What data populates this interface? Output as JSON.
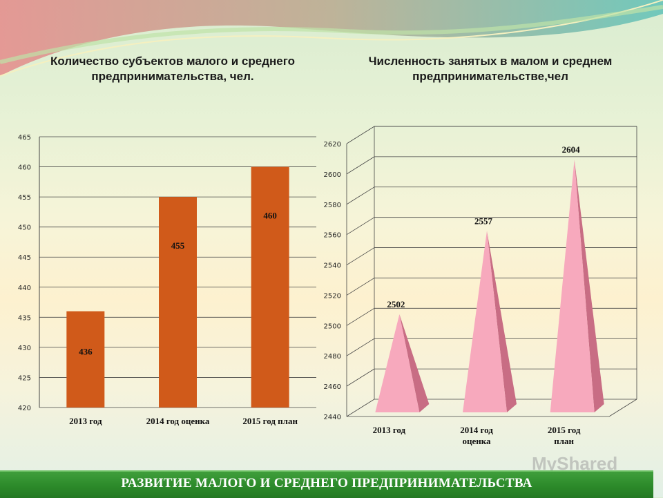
{
  "colors": {
    "bar": "#d05a1a",
    "pyramid_front": "#f7a9bd",
    "pyramid_side": "#c86d84",
    "banner": "#2c8a2a"
  },
  "chart_data": [
    {
      "type": "bar",
      "title": "Количество  субъектов малого и среднего предпринимательства,  чел.",
      "categories": [
        "2013 год",
        "2014 год оценка",
        "2015 год план"
      ],
      "values": [
        436,
        455,
        460
      ],
      "ylim": [
        420,
        465
      ],
      "yticks": [
        420,
        425,
        430,
        435,
        440,
        445,
        450,
        455,
        460,
        465
      ],
      "grid": true,
      "xlabel": "",
      "ylabel": ""
    },
    {
      "type": "bar",
      "style": "3d-pyramid",
      "title": "Численность занятых в малом и среднем предпринимательстве,чел",
      "categories": [
        "2013 год",
        "2014 год оценка",
        "2015 год план"
      ],
      "values": [
        2502,
        2557,
        2604
      ],
      "ylim": [
        2440,
        2620
      ],
      "yticks": [
        2440,
        2460,
        2480,
        2500,
        2520,
        2540,
        2560,
        2580,
        2600,
        2620
      ],
      "grid": true,
      "xlabel": "",
      "ylabel": ""
    }
  ],
  "footer": {
    "banner_text": "РАЗВИТИЕ МАЛОГО И СРЕДНЕГО ПРЕДПРИНИМАТЕЛЬСТВА"
  },
  "watermark": "MyShared"
}
